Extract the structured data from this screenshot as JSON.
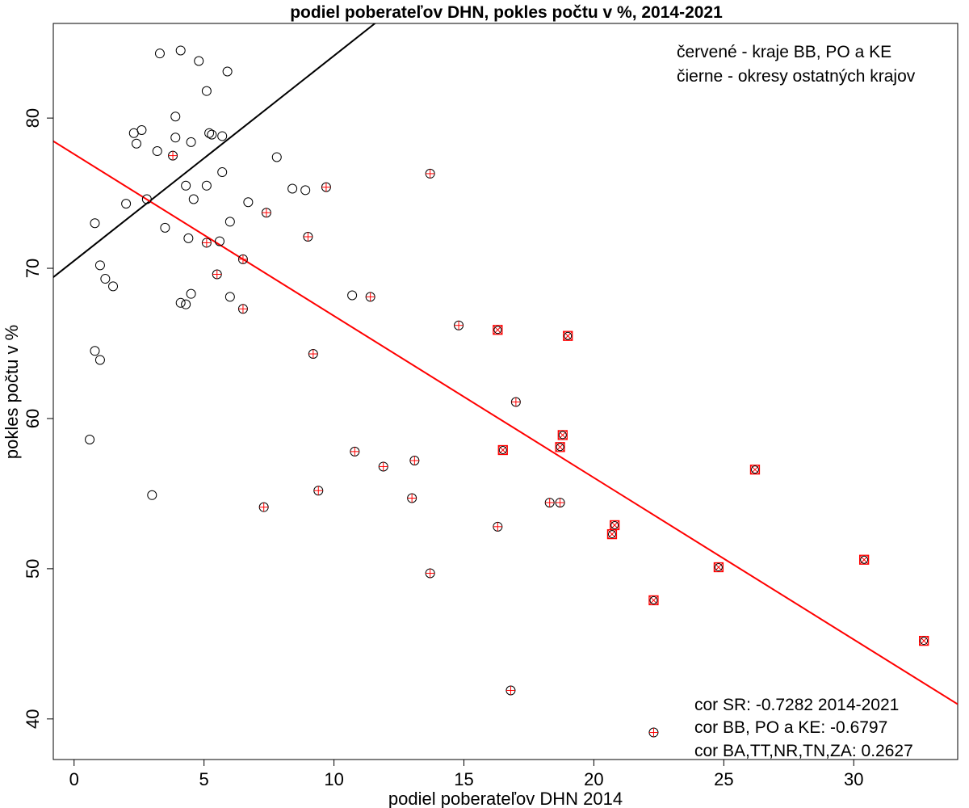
{
  "chart_data": {
    "type": "scatter",
    "title": "podiel poberateľov DHN, pokles počtu v %, 2014-2021",
    "xlabel": "podiel poberateľov DHN 2014",
    "ylabel": "pokles počtu v %",
    "xlim": [
      -0.8,
      34
    ],
    "ylim": [
      37.3,
      86.3
    ],
    "x_ticks": [
      0,
      5,
      10,
      15,
      20,
      25,
      30
    ],
    "y_ticks": [
      40,
      50,
      60,
      70,
      80
    ],
    "grid": false,
    "legend_text": [
      "červené - kraje BB, PO a KE",
      "čierne - okresy ostatných krajov"
    ],
    "annotations": [
      "cor SR: -0.7282 2014-2021",
      "cor BB, PO a KE: -0.6797",
      "cor BA,TT,NR,TN,ZA: 0.2627"
    ],
    "colors": {
      "black_group": "#000000",
      "red_group": "#ff0000"
    },
    "trend_lines": [
      {
        "name": "fit_black",
        "color": "#000000",
        "intercept": 70.5,
        "slope": 1.365
      },
      {
        "name": "fit_red",
        "color": "#ff0000",
        "intercept": 77.6,
        "slope": -1.077
      }
    ],
    "series": [
      {
        "marker": "circle",
        "points": [
          [
            3.3,
            84.3
          ],
          [
            4.1,
            84.5
          ],
          [
            4.8,
            83.8
          ],
          [
            5.9,
            83.1
          ],
          [
            5.1,
            81.8
          ],
          [
            3.9,
            80.1
          ],
          [
            2.6,
            79.2
          ],
          [
            2.3,
            79.0
          ],
          [
            3.9,
            78.7
          ],
          [
            5.2,
            79.0
          ],
          [
            5.3,
            78.9
          ],
          [
            5.7,
            78.8
          ],
          [
            2.4,
            78.3
          ],
          [
            4.5,
            78.4
          ],
          [
            3.2,
            77.8
          ],
          [
            7.8,
            77.4
          ],
          [
            5.7,
            76.4
          ],
          [
            4.3,
            75.5
          ],
          [
            5.1,
            75.5
          ],
          [
            8.4,
            75.3
          ],
          [
            8.9,
            75.2
          ],
          [
            2.8,
            74.6
          ],
          [
            4.6,
            74.6
          ],
          [
            2.0,
            74.3
          ],
          [
            6.7,
            74.4
          ],
          [
            0.8,
            73.0
          ],
          [
            6.0,
            73.1
          ],
          [
            3.5,
            72.7
          ],
          [
            4.4,
            72.0
          ],
          [
            5.6,
            71.8
          ],
          [
            1.0,
            70.2
          ],
          [
            1.2,
            69.3
          ],
          [
            1.5,
            68.8
          ],
          [
            4.5,
            68.3
          ],
          [
            6.0,
            68.1
          ],
          [
            10.7,
            68.2
          ],
          [
            4.1,
            67.7
          ],
          [
            4.3,
            67.6
          ],
          [
            0.8,
            64.5
          ],
          [
            1.0,
            63.9
          ],
          [
            0.6,
            58.6
          ],
          [
            3.0,
            54.9
          ]
        ]
      },
      {
        "marker": "circle-plus",
        "points": [
          [
            3.8,
            77.5
          ],
          [
            13.7,
            76.3
          ],
          [
            9.7,
            75.4
          ],
          [
            7.4,
            73.7
          ],
          [
            9.0,
            72.1
          ],
          [
            5.1,
            71.7
          ],
          [
            6.5,
            70.6
          ],
          [
            5.5,
            69.6
          ],
          [
            11.4,
            68.1
          ],
          [
            6.5,
            67.3
          ],
          [
            14.8,
            66.2
          ],
          [
            9.2,
            64.3
          ],
          [
            17.0,
            61.1
          ],
          [
            10.8,
            57.8
          ],
          [
            11.9,
            56.8
          ],
          [
            13.1,
            57.2
          ],
          [
            9.4,
            55.2
          ],
          [
            7.3,
            54.1
          ],
          [
            13.0,
            54.7
          ],
          [
            18.3,
            54.4
          ],
          [
            18.7,
            54.4
          ],
          [
            16.3,
            52.8
          ],
          [
            13.7,
            49.7
          ],
          [
            16.8,
            41.9
          ],
          [
            22.3,
            39.1
          ]
        ]
      },
      {
        "marker": "square-cross",
        "points": [
          [
            16.3,
            65.9
          ],
          [
            19.0,
            65.5
          ],
          [
            18.8,
            58.9
          ],
          [
            16.5,
            57.9
          ],
          [
            18.7,
            58.1
          ],
          [
            26.2,
            56.6
          ],
          [
            20.8,
            52.9
          ],
          [
            20.7,
            52.3
          ],
          [
            24.8,
            50.1
          ],
          [
            30.4,
            50.6
          ],
          [
            22.3,
            47.9
          ],
          [
            32.7,
            45.2
          ]
        ]
      }
    ]
  }
}
